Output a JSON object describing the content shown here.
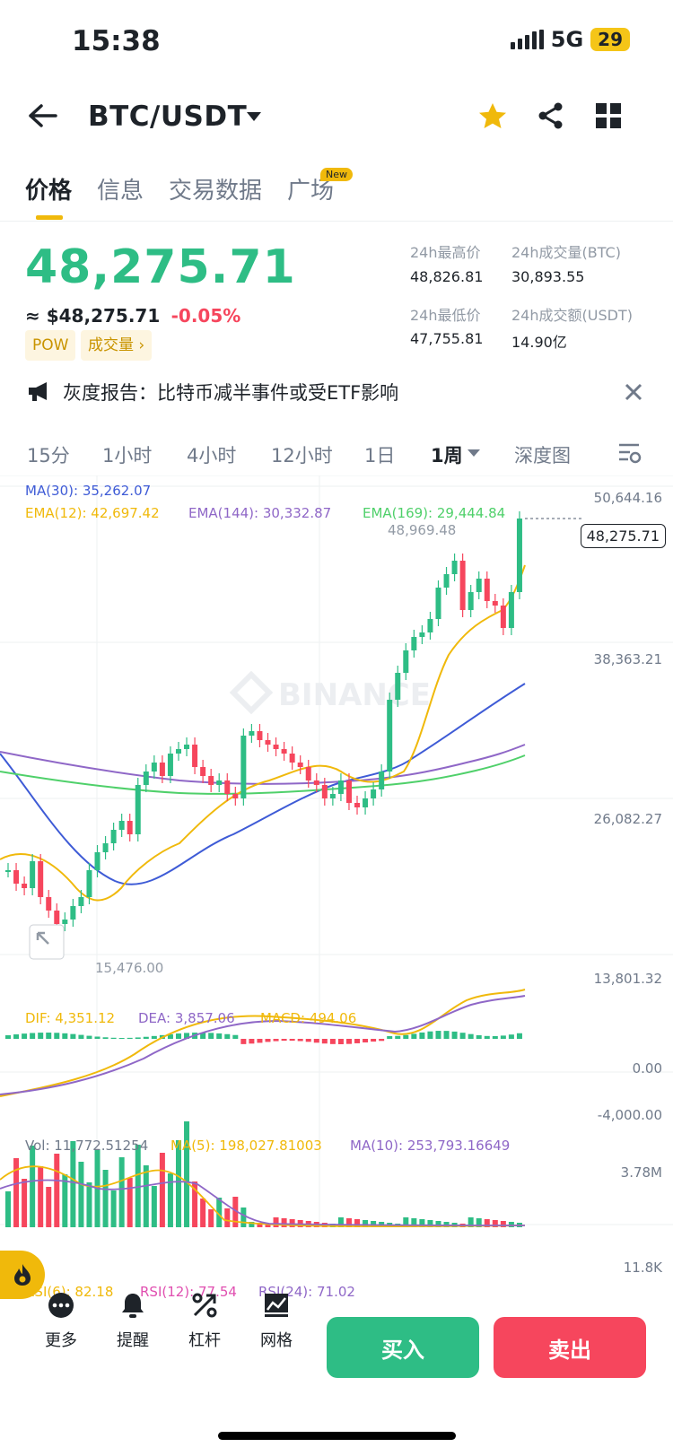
{
  "status_bar": {
    "time": "15:38",
    "network": "5G",
    "battery": "29"
  },
  "header": {
    "pair": "BTC/USDT",
    "icons": [
      "back-arrow-icon",
      "dropdown-caret-icon",
      "star-icon",
      "share-icon",
      "grid-icon"
    ]
  },
  "tabs": [
    {
      "label": "价格",
      "active": true
    },
    {
      "label": "信息"
    },
    {
      "label": "交易数据"
    },
    {
      "label": "广场",
      "badge": "New"
    }
  ],
  "price": {
    "last": "48,275.71",
    "usd": "≈ $48,275.71",
    "change": "-0.05%",
    "tags": [
      "POW",
      "成交量"
    ],
    "stats": {
      "high_label": "24h最高价",
      "high": "48,826.81",
      "vol_btc_label": "24h成交量(BTC)",
      "vol_btc": "30,893.55",
      "low_label": "24h最低价",
      "low": "47,755.81",
      "vol_usdt_label": "24h成交额(USDT)",
      "vol_usdt": "14.90亿"
    }
  },
  "notice": {
    "text": "灰度报告：比特币减半事件或受ETF影响"
  },
  "intervals": [
    {
      "label": "15分"
    },
    {
      "label": "1小时"
    },
    {
      "label": "4小时"
    },
    {
      "label": "12小时"
    },
    {
      "label": "1日"
    },
    {
      "label": "1周",
      "active": true
    },
    {
      "label": "深度图"
    }
  ],
  "indicators": {
    "ma30": "MA(30): 35,262.07",
    "ema12": "EMA(12): 42,697.42",
    "ema144": "EMA(144): 30,332.87",
    "ema169": "EMA(169): 29,444.84",
    "high_mark": "48,969.48",
    "low_mark": "15,476.00",
    "last_price_tag": "48,275.71",
    "price_axis": [
      "50,644.16",
      "38,363.21",
      "26,082.27",
      "13,801.32"
    ],
    "watermark": "BINANCE",
    "dif": "DIF: 4,351.12",
    "dea": "DEA: 3,857.06",
    "macd": "MACD: 494.06",
    "macd_axis": [
      "0.00",
      "-4,000.00"
    ],
    "vol": "Vol: 11,772.51254",
    "vol_ma5": "MA(5): 198,027.81003",
    "vol_ma10": "MA(10): 253,793.16649",
    "vol_axis": [
      "3.78M",
      "11.8K"
    ],
    "rsi6": "RSI(6): 82.18",
    "rsi12": "RSI(12): 77.54",
    "rsi24": "RSI(24): 71.02"
  },
  "colors": {
    "up": "#2ebd85",
    "down": "#f6465d",
    "ma30": "#3e5bd6",
    "ema12": "#f0b90b",
    "ema144": "#8f67c7",
    "ema169": "#4fd06a",
    "brand": "#f0b90b"
  },
  "chart_data": {
    "type": "candlestick",
    "interval": "1周",
    "ylim": [
      13801.32,
      50644.16
    ],
    "y_ticks": [
      50644.16,
      38363.21,
      26082.27,
      13801.32
    ],
    "last": 48275.71,
    "marked_high": 48969.48,
    "marked_low": 15476.0
  },
  "bottom_bar": {
    "tools": [
      {
        "label": "更多"
      },
      {
        "label": "提醒"
      },
      {
        "label": "杠杆"
      },
      {
        "label": "网格"
      }
    ],
    "buy": "买入",
    "sell": "卖出"
  }
}
